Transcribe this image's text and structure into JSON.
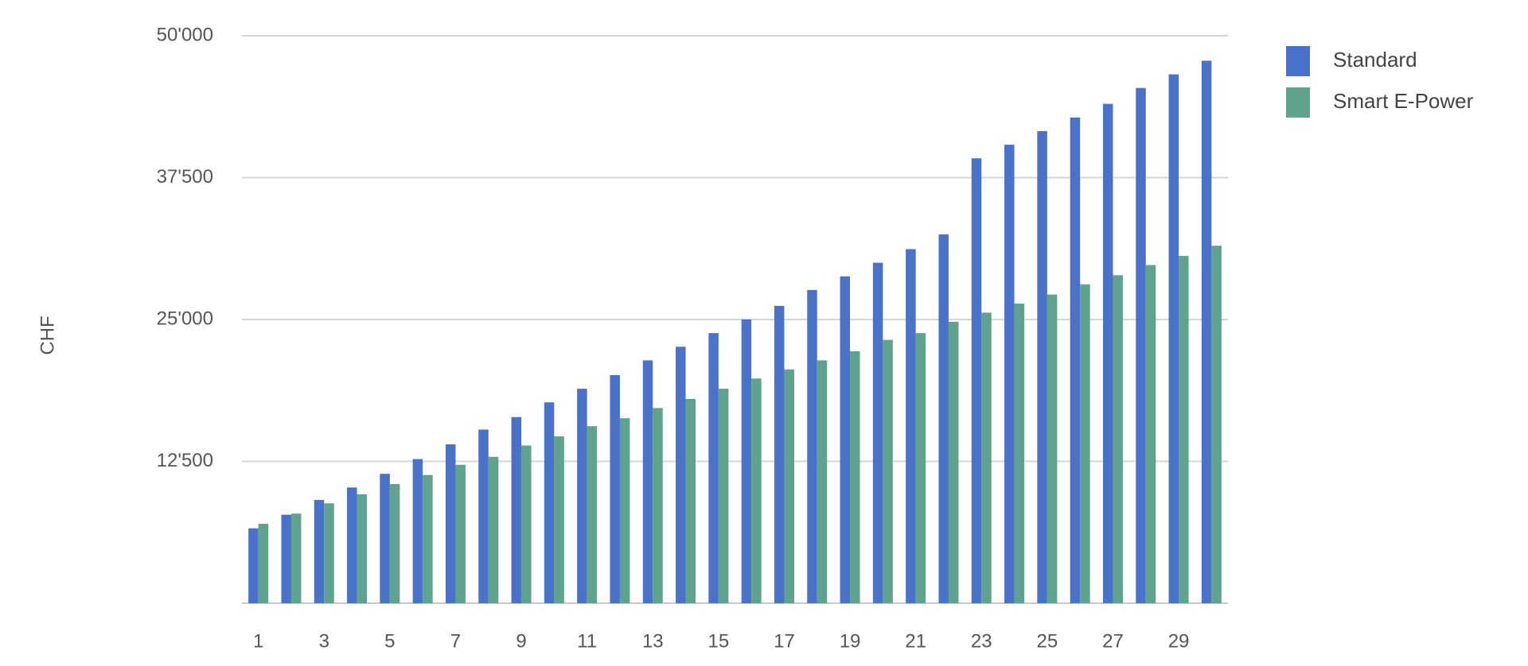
{
  "chart_data": {
    "type": "bar",
    "y_label": "CHF",
    "categories": [
      "1",
      null,
      "3",
      null,
      "5",
      null,
      "7",
      null,
      "9",
      null,
      "11",
      null,
      "13",
      null,
      "15",
      null,
      "17",
      null,
      "19",
      null,
      "21",
      null,
      "23",
      null,
      "25",
      null,
      "27",
      null,
      "29",
      null
    ],
    "series": [
      {
        "name": "Standard",
        "color": "#4a72c9",
        "values": [
          6600,
          7800,
          9100,
          10200,
          11400,
          12700,
          14000,
          15300,
          16400,
          17700,
          18900,
          20100,
          21400,
          22600,
          23800,
          25000,
          26200,
          27600,
          28800,
          30000,
          31200,
          32500,
          39200,
          40400,
          41600,
          42800,
          44000,
          45400,
          46600,
          47800
        ]
      },
      {
        "name": "Smart E-Power",
        "color": "#5fa38f",
        "values": [
          7000,
          7900,
          8800,
          9600,
          10500,
          11300,
          12200,
          12900,
          13900,
          14700,
          15600,
          16300,
          17200,
          18000,
          18900,
          19800,
          20600,
          21400,
          22200,
          23200,
          23800,
          24800,
          25600,
          26400,
          27200,
          28100,
          28900,
          29800,
          30600,
          31500
        ]
      }
    ],
    "ylim": [
      0,
      50000
    ],
    "yticks": [
      {
        "value": 12500,
        "label": "12'500"
      },
      {
        "value": 25000,
        "label": "25'000"
      },
      {
        "value": 37500,
        "label": "37'500"
      },
      {
        "value": 50000,
        "label": "50'000"
      }
    ],
    "grid": true
  }
}
